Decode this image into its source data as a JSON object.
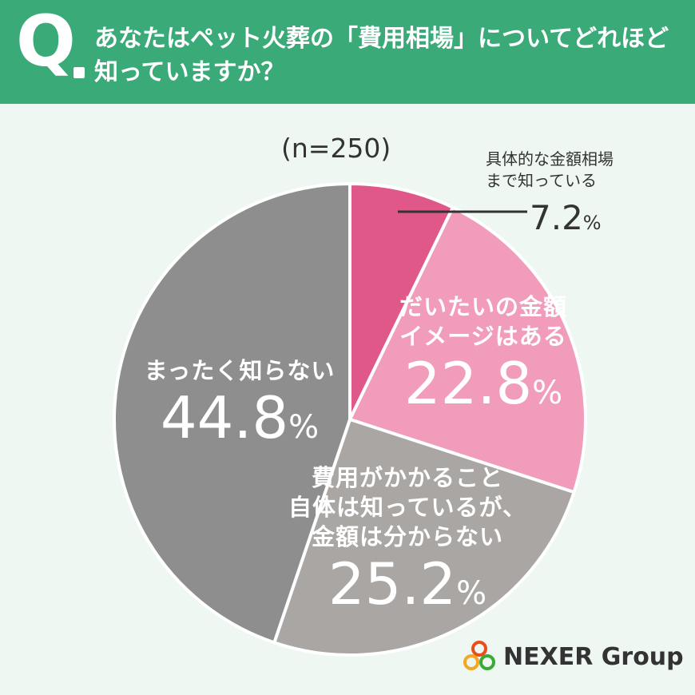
{
  "header": {
    "q_letter": "Q",
    "question": "あなたはペット火葬の「費用相場」についてどれほど知っていますか？"
  },
  "sample": "(n=250)",
  "brand": {
    "name": "NEXER Group"
  },
  "colors": {
    "header_bg": "#3aaa79",
    "bg": "#eef7f1"
  },
  "chart_data": {
    "type": "pie",
    "title": "",
    "slices": [
      {
        "label": "具体的な金額相場まで知っている",
        "lines": [
          "具体的な金額相場",
          "まで知っている"
        ],
        "value": 7.2,
        "value_text": "7.2",
        "color": "#e0588a"
      },
      {
        "label": "だいたいの金額イメージはある",
        "lines": [
          "だいたいの金額",
          "イメージはある"
        ],
        "value": 22.8,
        "value_text": "22.8",
        "color": "#f19cba"
      },
      {
        "label": "費用がかかること自体は知っているが、金額は分からない",
        "lines": [
          "費用がかかること",
          "自体は知っているが、",
          "金額は分からない"
        ],
        "value": 25.2,
        "value_text": "25.2",
        "color": "#aaa6a4"
      },
      {
        "label": "まったく知らない",
        "lines": [
          "まったく知らない"
        ],
        "value": 44.8,
        "value_text": "44.8",
        "color": "#8e8e8e"
      }
    ],
    "unit": "%"
  }
}
